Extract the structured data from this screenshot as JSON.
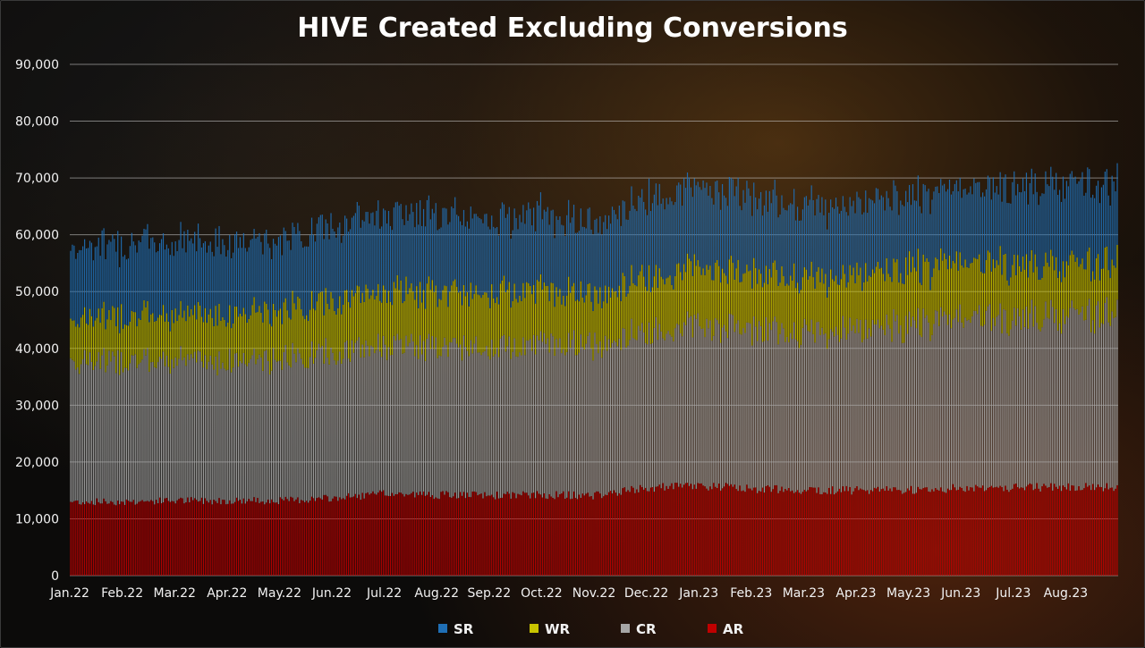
{
  "chart_data": {
    "type": "bar",
    "stacked": true,
    "title": "HIVE Created Excluding Conversions",
    "xlabel": "",
    "ylabel": "",
    "ylim": [
      0,
      90000
    ],
    "yticks": [
      "0",
      "10,000",
      "20,000",
      "30,000",
      "40,000",
      "50,000",
      "60,000",
      "70,000",
      "80,000",
      "90,000"
    ],
    "x_tick_labels": [
      "Jan.22",
      "Feb.22",
      "Mar.22",
      "Apr.22",
      "May.22",
      "Jun.22",
      "Jul.22",
      "Aug.22",
      "Sep.22",
      "Oct.22",
      "Nov.22",
      "Dec.22",
      "Jan.23",
      "Feb.23",
      "Mar.23",
      "Apr.23",
      "May.23",
      "Jun.23",
      "Jul.23",
      "Aug.23"
    ],
    "granularity": "daily bars, Jan 2022 through Aug 2023",
    "grid": true,
    "legend_position": "bottom",
    "series": [
      {
        "name": "AR",
        "color": "#c00000",
        "monthly_values": [
          13000,
          13000,
          13200,
          13200,
          13200,
          13600,
          14400,
          14200,
          14100,
          14200,
          14100,
          15400,
          15800,
          15300,
          15100,
          15000,
          15100,
          15400,
          15500,
          15600
        ]
      },
      {
        "name": "CR",
        "color": "#a6a6a6",
        "monthly_values": [
          25000,
          24800,
          24700,
          24700,
          24900,
          25500,
          26000,
          26000,
          26300,
          26700,
          26700,
          27600,
          28500,
          27700,
          27800,
          28400,
          29000,
          29500,
          29800,
          30200
        ]
      },
      {
        "name": "WR",
        "color": "#c8c400",
        "monthly_values": [
          7500,
          8000,
          8100,
          8300,
          8600,
          9300,
          9600,
          9600,
          9600,
          9600,
          8800,
          9700,
          10200,
          9700,
          9700,
          9600,
          9800,
          9800,
          9500,
          9000
        ]
      },
      {
        "name": "SR",
        "color": "#1f6fb5",
        "monthly_values": [
          12500,
          12700,
          12900,
          12700,
          12500,
          13200,
          14000,
          13500,
          13100,
          13300,
          12800,
          14000,
          14300,
          13500,
          12800,
          12800,
          12700,
          13000,
          13500,
          14000
        ]
      }
    ]
  }
}
